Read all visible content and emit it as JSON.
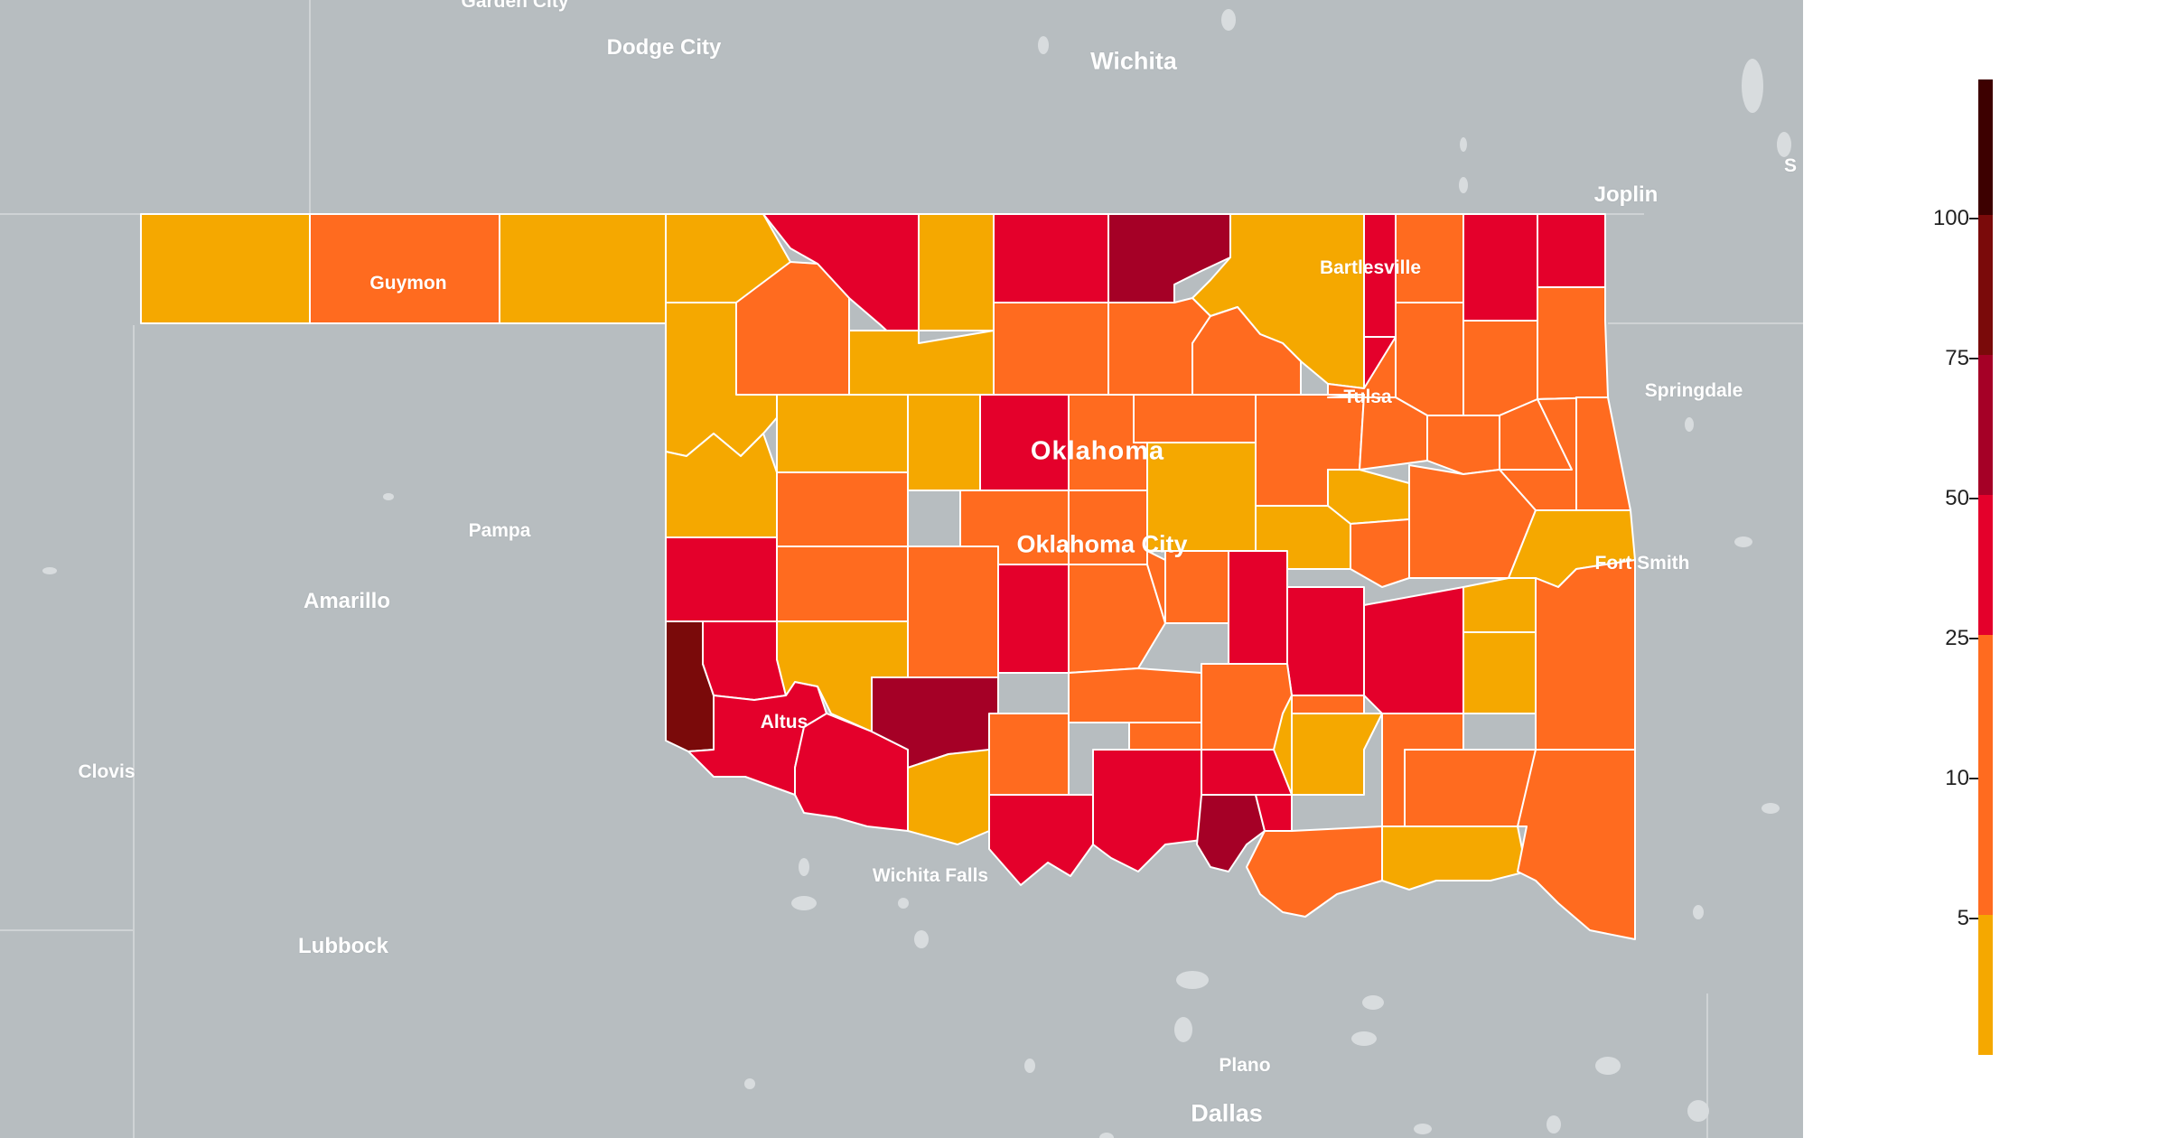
{
  "legend": {
    "colors": [
      "#f5a800",
      "#ff6b1f",
      "#e4002b",
      "#a50026",
      "#7a0a0a",
      "#3d0000"
    ],
    "labels": [
      "100",
      "75",
      "50",
      "25",
      "10",
      "5"
    ]
  },
  "cities": [
    {
      "key": "garden_city",
      "label": "Garden City"
    },
    {
      "key": "dodge_city",
      "label": "Dodge City"
    },
    {
      "key": "wichita",
      "label": "Wichita"
    },
    {
      "key": "joplin",
      "label": "Joplin"
    },
    {
      "key": "guymon",
      "label": "Guymon"
    },
    {
      "key": "bartlesville",
      "label": "Bartlesville"
    },
    {
      "key": "springdale",
      "label": "Springdale"
    },
    {
      "key": "tulsa",
      "label": "Tulsa"
    },
    {
      "key": "oklahoma",
      "label": "Oklahoma"
    },
    {
      "key": "pampa",
      "label": "Pampa"
    },
    {
      "key": "oklahoma_city",
      "label": "Oklahoma City"
    },
    {
      "key": "fort_smith",
      "label": "Fort Smith"
    },
    {
      "key": "amarillo",
      "label": "Amarillo"
    },
    {
      "key": "altus",
      "label": "Altus"
    },
    {
      "key": "clovis",
      "label": "Clovis"
    },
    {
      "key": "wichita_falls",
      "label": "Wichita Falls"
    },
    {
      "key": "lubbock",
      "label": "Lubbock"
    },
    {
      "key": "plano",
      "label": "Plano"
    },
    {
      "key": "dallas",
      "label": "Dallas"
    },
    {
      "key": "s_edge",
      "label": "S"
    }
  ]
}
